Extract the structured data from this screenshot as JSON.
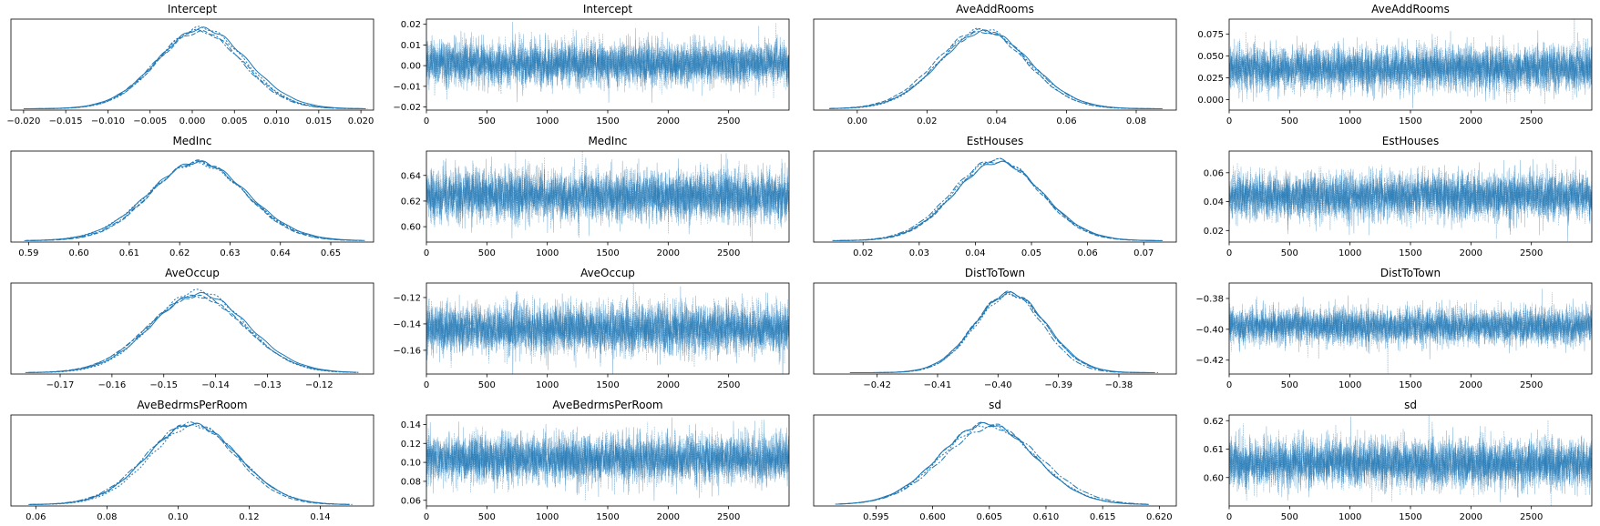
{
  "figure": {
    "line_color": "#1f77b4",
    "axis_color": "#000000"
  },
  "chart_data": [
    {
      "type": "line",
      "kind": "density",
      "title": "Intercept",
      "xlim": [
        -0.0215,
        0.0215
      ],
      "xticks": [
        -0.02,
        -0.015,
        -0.01,
        -0.005,
        0.0,
        0.005,
        0.01,
        0.015,
        0.02
      ],
      "xtick_labels": [
        "−0.020",
        "−0.015",
        "−0.010",
        "−0.005",
        "0.000",
        "0.005",
        "0.010",
        "0.015",
        "0.020"
      ],
      "yticks": [],
      "ytick_labels": [],
      "mean": 0.001,
      "sd": 0.0052,
      "range": [
        -0.02,
        0.0205
      ],
      "chains": 4
    },
    {
      "type": "line",
      "kind": "trace",
      "title": "Intercept",
      "xlim": [
        0,
        3000
      ],
      "ylim": [
        -0.0215,
        0.0225
      ],
      "xticks": [
        0,
        500,
        1000,
        1500,
        2000,
        2500
      ],
      "xtick_labels": [
        "0",
        "500",
        "1000",
        "1500",
        "2000",
        "2500"
      ],
      "yticks": [
        -0.02,
        -0.01,
        0.0,
        0.01,
        0.02
      ],
      "ytick_labels": [
        "−0.02",
        "−0.01",
        "0.00",
        "0.01",
        "0.02"
      ],
      "mean": 0.001,
      "sd": 0.0052,
      "draws": 3000,
      "chains": 4
    },
    {
      "type": "line",
      "kind": "density",
      "title": "AveAddRooms",
      "xlim": [
        -0.0125,
        0.0915
      ],
      "xticks": [
        0.0,
        0.02,
        0.04,
        0.06,
        0.08
      ],
      "xtick_labels": [
        "0.00",
        "0.02",
        "0.04",
        "0.06",
        "0.08"
      ],
      "yticks": [],
      "ytick_labels": [],
      "mean": 0.036,
      "sd": 0.0125,
      "range": [
        -0.008,
        0.087
      ],
      "chains": 4
    },
    {
      "type": "line",
      "kind": "trace",
      "title": "AveAddRooms",
      "xlim": [
        0,
        3000
      ],
      "ylim": [
        -0.012,
        0.092
      ],
      "xticks": [
        0,
        500,
        1000,
        1500,
        2000,
        2500
      ],
      "xtick_labels": [
        "0",
        "500",
        "1000",
        "1500",
        "2000",
        "2500"
      ],
      "yticks": [
        0.0,
        0.025,
        0.05,
        0.075
      ],
      "ytick_labels": [
        "0.000",
        "0.025",
        "0.050",
        "0.075"
      ],
      "mean": 0.036,
      "sd": 0.0125,
      "draws": 3000,
      "chains": 4
    },
    {
      "type": "line",
      "kind": "density",
      "title": "MedInc",
      "xlim": [
        0.5865,
        0.6585
      ],
      "xticks": [
        0.59,
        0.6,
        0.61,
        0.62,
        0.63,
        0.64,
        0.65
      ],
      "xtick_labels": [
        "0.59",
        "0.60",
        "0.61",
        "0.62",
        "0.63",
        "0.64",
        "0.65"
      ],
      "yticks": [],
      "ytick_labels": [],
      "mean": 0.624,
      "sd": 0.0095,
      "range": [
        0.59,
        0.656
      ],
      "chains": 4
    },
    {
      "type": "line",
      "kind": "trace",
      "title": "MedInc",
      "xlim": [
        0,
        3000
      ],
      "ylim": [
        0.588,
        0.659
      ],
      "xticks": [
        0,
        500,
        1000,
        1500,
        2000,
        2500
      ],
      "xtick_labels": [
        "0",
        "500",
        "1000",
        "1500",
        "2000",
        "2500"
      ],
      "yticks": [
        0.6,
        0.62,
        0.64
      ],
      "ytick_labels": [
        "0.60",
        "0.62",
        "0.64"
      ],
      "mean": 0.624,
      "sd": 0.0095,
      "draws": 3000,
      "chains": 4
    },
    {
      "type": "line",
      "kind": "density",
      "title": "EstHouses",
      "xlim": [
        0.0112,
        0.0758
      ],
      "xticks": [
        0.02,
        0.03,
        0.04,
        0.05,
        0.06,
        0.07
      ],
      "xtick_labels": [
        "0.02",
        "0.03",
        "0.04",
        "0.05",
        "0.06",
        "0.07"
      ],
      "yticks": [],
      "ytick_labels": [],
      "mean": 0.044,
      "sd": 0.0078,
      "range": [
        0.015,
        0.073
      ],
      "chains": 4
    },
    {
      "type": "line",
      "kind": "trace",
      "title": "EstHouses",
      "xlim": [
        0,
        3000
      ],
      "ylim": [
        0.012,
        0.075
      ],
      "xticks": [
        0,
        500,
        1000,
        1500,
        2000,
        2500
      ],
      "xtick_labels": [
        "0",
        "500",
        "1000",
        "1500",
        "2000",
        "2500"
      ],
      "yticks": [
        0.02,
        0.04,
        0.06
      ],
      "ytick_labels": [
        "0.02",
        "0.04",
        "0.06"
      ],
      "mean": 0.044,
      "sd": 0.0078,
      "draws": 3000,
      "chains": 4
    },
    {
      "type": "line",
      "kind": "density",
      "title": "AveOccup",
      "xlim": [
        -0.1795,
        -0.1095
      ],
      "xticks": [
        -0.17,
        -0.16,
        -0.15,
        -0.14,
        -0.13,
        -0.12
      ],
      "xtick_labels": [
        "−0.17",
        "−0.16",
        "−0.15",
        "−0.14",
        "−0.13",
        "−0.12"
      ],
      "yticks": [],
      "ytick_labels": [],
      "mean": -0.1435,
      "sd": 0.0092,
      "range": [
        -0.176,
        -0.113
      ],
      "chains": 4
    },
    {
      "type": "line",
      "kind": "trace",
      "title": "AveOccup",
      "xlim": [
        0,
        3000
      ],
      "ylim": [
        -0.178,
        -0.109
      ],
      "xticks": [
        0,
        500,
        1000,
        1500,
        2000,
        2500
      ],
      "xtick_labels": [
        "0",
        "500",
        "1000",
        "1500",
        "2000",
        "2500"
      ],
      "yticks": [
        -0.16,
        -0.14,
        -0.12
      ],
      "ytick_labels": [
        "−0.16",
        "−0.14",
        "−0.12"
      ],
      "mean": -0.1435,
      "sd": 0.0092,
      "draws": 3000,
      "chains": 4
    },
    {
      "type": "line",
      "kind": "density",
      "title": "DistToTown",
      "xlim": [
        -0.4305,
        -0.3705
      ],
      "xticks": [
        -0.42,
        -0.41,
        -0.4,
        -0.39,
        -0.38
      ],
      "xtick_labels": [
        "−0.42",
        "−0.41",
        "−0.40",
        "−0.39",
        "−0.38"
      ],
      "yticks": [],
      "ytick_labels": [],
      "mean": -0.398,
      "sd": 0.0058,
      "range": [
        -0.424,
        -0.374
      ],
      "chains": 4
    },
    {
      "type": "line",
      "kind": "trace",
      "title": "DistToTown",
      "xlim": [
        0,
        3000
      ],
      "ylim": [
        -0.429,
        -0.37
      ],
      "xticks": [
        0,
        500,
        1000,
        1500,
        2000,
        2500
      ],
      "xtick_labels": [
        "0",
        "500",
        "1000",
        "1500",
        "2000",
        "2500"
      ],
      "yticks": [
        -0.42,
        -0.4,
        -0.38
      ],
      "ytick_labels": [
        "−0.42",
        "−0.40",
        "−0.38"
      ],
      "mean": -0.398,
      "sd": 0.0058,
      "draws": 3000,
      "chains": 4
    },
    {
      "type": "line",
      "kind": "density",
      "title": "AveBedrmsPerRoom",
      "xlim": [
        0.053,
        0.155
      ],
      "xticks": [
        0.06,
        0.08,
        0.1,
        0.12,
        0.14
      ],
      "xtick_labels": [
        "0.06",
        "0.08",
        "0.10",
        "0.12",
        "0.14"
      ],
      "yticks": [],
      "ytick_labels": [],
      "mean": 0.104,
      "sd": 0.0125,
      "range": [
        0.058,
        0.148
      ],
      "chains": 4
    },
    {
      "type": "line",
      "kind": "trace",
      "title": "AveBedrmsPerRoom",
      "xlim": [
        0,
        3000
      ],
      "ylim": [
        0.054,
        0.15
      ],
      "xticks": [
        0,
        500,
        1000,
        1500,
        2000,
        2500
      ],
      "xtick_labels": [
        "0",
        "500",
        "1000",
        "1500",
        "2000",
        "2500"
      ],
      "yticks": [
        0.06,
        0.08,
        0.1,
        0.12,
        0.14
      ],
      "ytick_labels": [
        "0.06",
        "0.08",
        "0.10",
        "0.12",
        "0.14"
      ],
      "mean": 0.104,
      "sd": 0.0125,
      "draws": 3000,
      "chains": 4
    },
    {
      "type": "line",
      "kind": "density",
      "title": "sd",
      "xlim": [
        0.5895,
        0.6215
      ],
      "xticks": [
        0.595,
        0.6,
        0.605,
        0.61,
        0.615,
        0.62
      ],
      "xtick_labels": [
        "0.595",
        "0.600",
        "0.605",
        "0.610",
        "0.615",
        "0.620"
      ],
      "yticks": [],
      "ytick_labels": [],
      "mean": 0.605,
      "sd": 0.0042,
      "range": [
        0.5915,
        0.619
      ],
      "chains": 4
    },
    {
      "type": "line",
      "kind": "trace",
      "title": "sd",
      "xlim": [
        0,
        3000
      ],
      "ylim": [
        0.59,
        0.622
      ],
      "xticks": [
        0,
        500,
        1000,
        1500,
        2000,
        2500
      ],
      "xtick_labels": [
        "0",
        "500",
        "1000",
        "1500",
        "2000",
        "2500"
      ],
      "yticks": [
        0.6,
        0.61,
        0.62
      ],
      "ytick_labels": [
        "0.60",
        "0.61",
        "0.62"
      ],
      "mean": 0.605,
      "sd": 0.0042,
      "draws": 3000,
      "chains": 4
    }
  ]
}
